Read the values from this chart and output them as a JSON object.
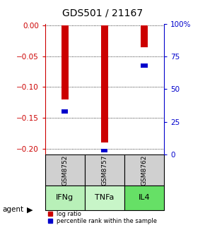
{
  "title": "GDS501 / 21167",
  "samples": [
    "GSM8752",
    "GSM8757",
    "GSM8762"
  ],
  "agents": [
    "IFNg",
    "TNFa",
    "IL4"
  ],
  "log_ratios": [
    -0.12,
    -0.19,
    -0.035
  ],
  "percentile_ranks": [
    33,
    3,
    68
  ],
  "ylim_left": [
    -0.21,
    0.003
  ],
  "ylim_right": [
    0,
    100
  ],
  "yticks_left": [
    0,
    -0.05,
    -0.1,
    -0.15,
    -0.2
  ],
  "yticks_right": [
    0,
    25,
    50,
    75,
    100
  ],
  "bar_color": "#cc0000",
  "pct_color": "#0000cc",
  "sample_bg": "#d0d0d0",
  "agent_bg_colors": [
    "#b8f0b8",
    "#c8f5c8",
    "#66e066"
  ],
  "legend_labels": [
    "log ratio",
    "percentile rank within the sample"
  ],
  "agent_label": "agent"
}
